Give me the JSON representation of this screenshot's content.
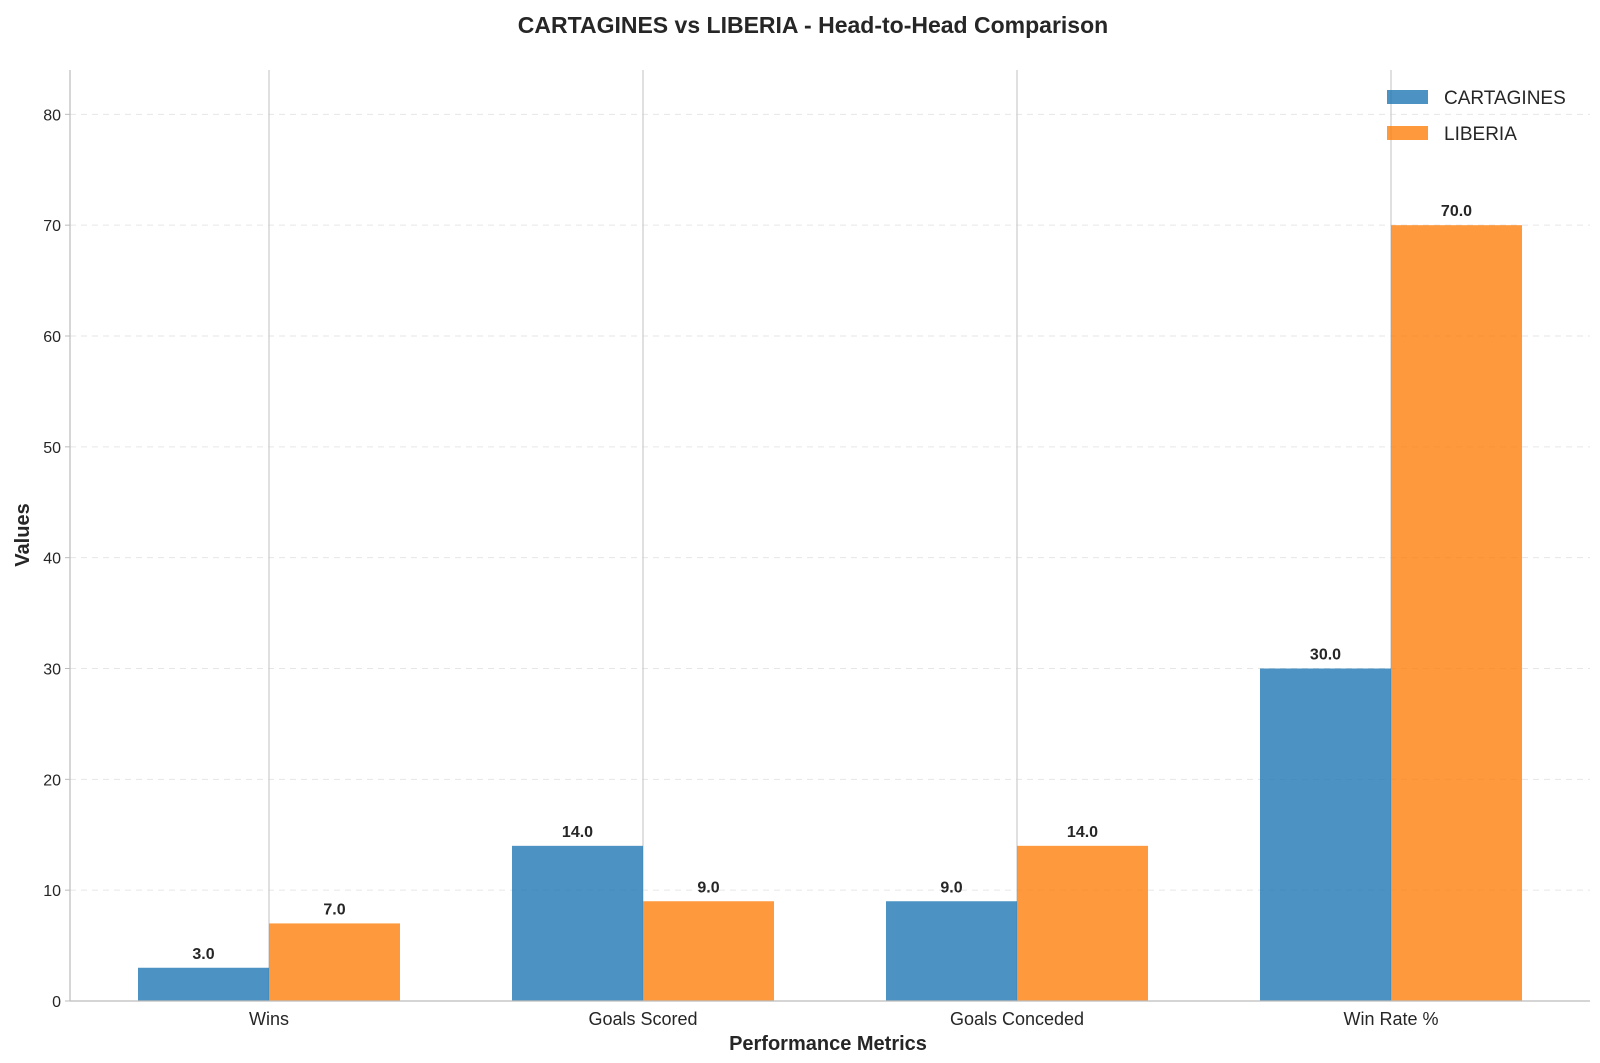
{
  "chart_data": {
    "type": "bar",
    "title": "CARTAGINES vs LIBERIA - Head-to-Head Comparison",
    "xlabel": "Performance Metrics",
    "ylabel": "Values",
    "categories": [
      "Wins",
      "Goals Scored",
      "Goals Conceded",
      "Win Rate %"
    ],
    "series": [
      {
        "name": "CARTAGINES",
        "values": [
          3.0,
          14.0,
          9.0,
          30.0
        ],
        "color": "#1f77b4",
        "labels": [
          "3.0",
          "14.0",
          "9.0",
          "30.0"
        ]
      },
      {
        "name": "LIBERIA",
        "values": [
          7.0,
          9.0,
          14.0,
          70.0
        ],
        "color": "#ff7f0e",
        "labels": [
          "7.0",
          "9.0",
          "14.0",
          "70.0"
        ]
      }
    ],
    "ylim": [
      0,
      84
    ],
    "yticks": [
      0,
      10,
      20,
      30,
      40,
      50,
      60,
      70,
      80
    ],
    "ytick_labels": [
      "0",
      "10",
      "20",
      "30",
      "40",
      "50",
      "60",
      "70",
      "80"
    ],
    "grid": true,
    "legend_position": "top-right"
  }
}
